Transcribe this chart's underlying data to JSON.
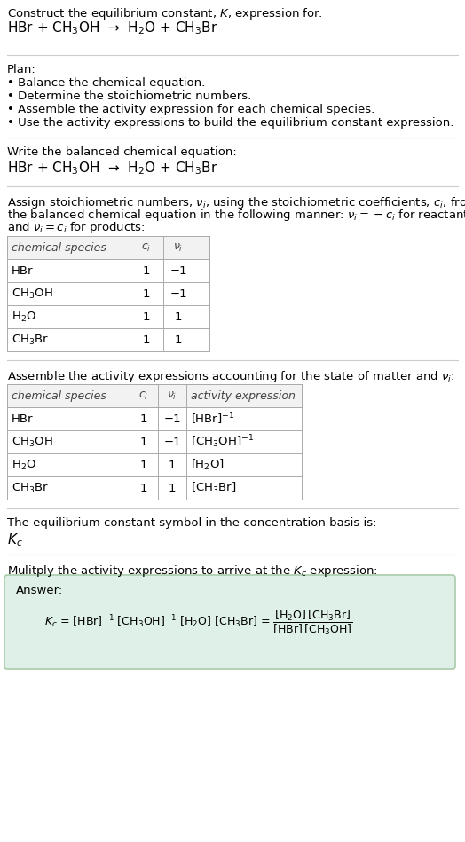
{
  "bg_color": "#ffffff",
  "text_color": "#000000",
  "answer_bg": "#dff0e8",
  "answer_border": "#aaccaa",
  "title_line1": "Construct the equilibrium constant, $K$, expression for:",
  "title_line2": "HBr + CH$_3$OH  →  H$_2$O + CH$_3$Br",
  "plan_header": "Plan:",
  "plan_bullets": [
    "• Balance the chemical equation.",
    "• Determine the stoichiometric numbers.",
    "• Assemble the activity expression for each chemical species.",
    "• Use the activity expressions to build the equilibrium constant expression."
  ],
  "balanced_eq_header": "Write the balanced chemical equation:",
  "balanced_eq": "HBr + CH$_3$OH  →  H$_2$O + CH$_3$Br",
  "stoich_intro": "Assign stoichiometric numbers, $\\nu_i$, using the stoichiometric coefficients, $c_i$, from",
  "stoich_intro2": "the balanced chemical equation in the following manner: $\\nu_i = -c_i$ for reactants",
  "stoich_intro3": "and $\\nu_i = c_i$ for products:",
  "table1_headers": [
    "chemical species",
    "$c_i$",
    "$\\nu_i$"
  ],
  "table1_rows": [
    [
      "HBr",
      "1",
      "−1"
    ],
    [
      "CH$_3$OH",
      "1",
      "−1"
    ],
    [
      "H$_2$O",
      "1",
      "1"
    ],
    [
      "CH$_3$Br",
      "1",
      "1"
    ]
  ],
  "assemble_text": "Assemble the activity expressions accounting for the state of matter and $\\nu_i$:",
  "table2_headers": [
    "chemical species",
    "$c_i$",
    "$\\nu_i$",
    "activity expression"
  ],
  "table2_rows": [
    [
      "HBr",
      "1",
      "−1",
      "[HBr]$^{-1}$"
    ],
    [
      "CH$_3$OH",
      "1",
      "−1",
      "[CH$_3$OH]$^{-1}$"
    ],
    [
      "H$_2$O",
      "1",
      "1",
      "[H$_2$O]"
    ],
    [
      "CH$_3$Br",
      "1",
      "1",
      "[CH$_3$Br]"
    ]
  ],
  "Kc_text": "The equilibrium constant symbol in the concentration basis is:",
  "Kc_symbol": "$K_c$",
  "multiply_text": "Mulitply the activity expressions to arrive at the $K_c$ expression:",
  "answer_label": "Answer:",
  "line_color": "#cccccc"
}
